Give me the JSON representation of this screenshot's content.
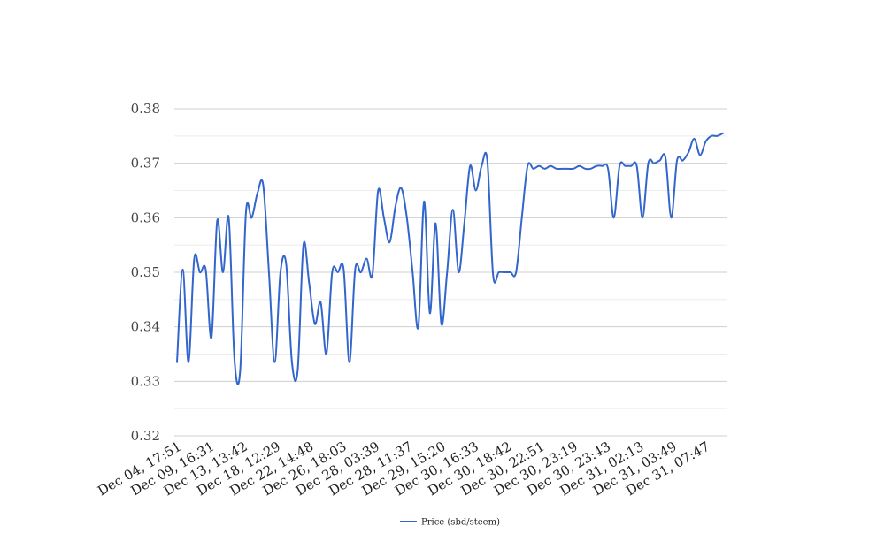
{
  "chart_data": {
    "type": "line",
    "title": "",
    "xlabel": "",
    "ylabel": "",
    "ylim": [
      0.32,
      0.38
    ],
    "y_ticks": [
      "0.32",
      "0.33",
      "0.34",
      "0.35",
      "0.36",
      "0.37",
      "0.38"
    ],
    "grid": true,
    "legend_position": "bottom-center",
    "x_tick_labels": [
      "Dec 04, 17:51",
      "Dec 09, 16:31",
      "Dec 13, 13:42",
      "Dec 18, 12:29",
      "Dec 22, 14:48",
      "Dec 26, 18:03",
      "Dec 28, 03:39",
      "Dec 28, 11:37",
      "Dec 29, 15:20",
      "Dec 30, 16:33",
      "Dec 30, 18:42",
      "Dec 30, 22:51",
      "Dec 30, 23:19",
      "Dec 30, 23:43",
      "Dec 31, 02:13",
      "Dec 31, 03:49",
      "Dec 31, 07:47"
    ],
    "series": [
      {
        "name": "Price (sbd/steem)",
        "color": "#3366cc",
        "values": [
          0.3335,
          0.3505,
          0.3335,
          0.3525,
          0.35,
          0.3505,
          0.338,
          0.3595,
          0.35,
          0.36,
          0.334,
          0.332,
          0.361,
          0.36,
          0.3645,
          0.366,
          0.35,
          0.3335,
          0.35,
          0.3515,
          0.3335,
          0.332,
          0.355,
          0.348,
          0.3405,
          0.3445,
          0.335,
          0.35,
          0.35,
          0.3505,
          0.3335,
          0.3505,
          0.35,
          0.3525,
          0.3495,
          0.365,
          0.36,
          0.3555,
          0.362,
          0.3655,
          0.36,
          0.35,
          0.34,
          0.363,
          0.3425,
          0.359,
          0.3405,
          0.35,
          0.3615,
          0.35,
          0.359,
          0.3695,
          0.365,
          0.3695,
          0.3705,
          0.3495,
          0.35,
          0.35,
          0.35,
          0.35,
          0.36,
          0.3695,
          0.369,
          0.3695,
          0.369,
          0.3695,
          0.369,
          0.369,
          0.369,
          0.369,
          0.3695,
          0.369,
          0.369,
          0.3695,
          0.3695,
          0.369,
          0.36,
          0.3695,
          0.3695,
          0.3695,
          0.3695,
          0.36,
          0.37,
          0.37,
          0.3705,
          0.371,
          0.36,
          0.3705,
          0.3705,
          0.372,
          0.3745,
          0.3715,
          0.374,
          0.375,
          0.375,
          0.3755
        ]
      }
    ]
  }
}
